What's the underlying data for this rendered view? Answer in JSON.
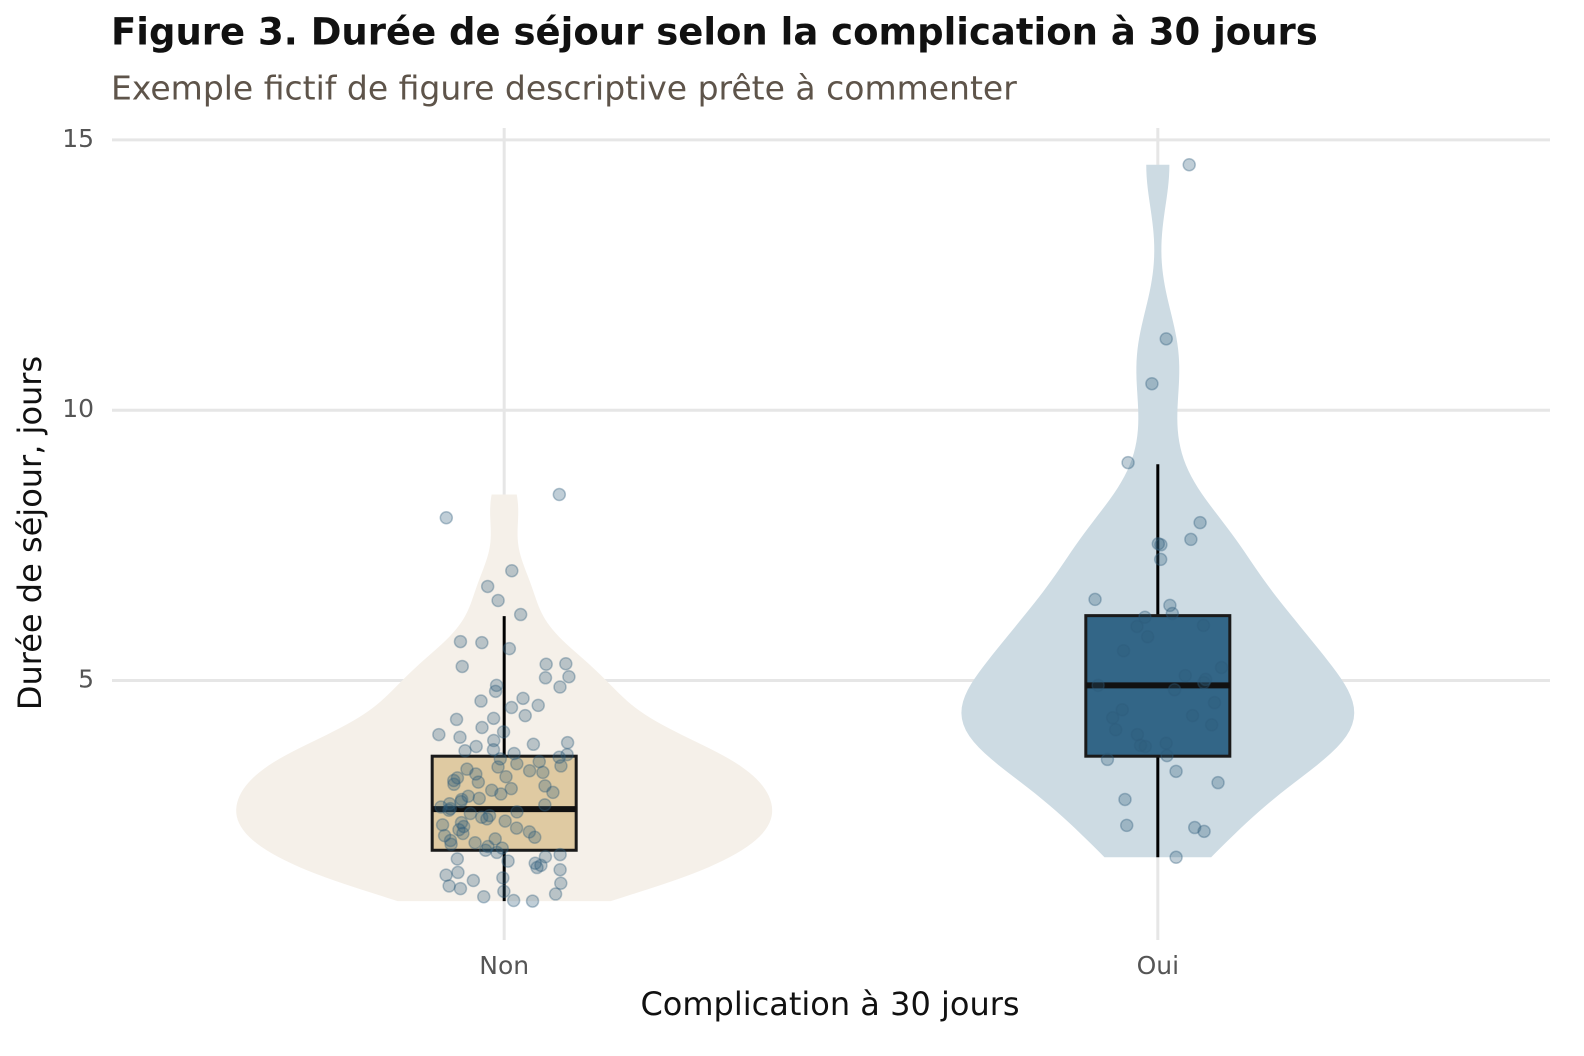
{
  "chart_data": {
    "type": "violin",
    "title": "Figure 3. Durée de séjour selon la complication à 30 jours",
    "subtitle": "Exemple fictif de figure descriptive prête à commenter",
    "x_label": "Complication à 30 jours",
    "y_label": "Durée de séjour, jours",
    "categories": [
      "Non",
      "Oui"
    ],
    "groups": [
      {
        "violin_color": "#f5f0e9",
        "box_color": "#dfcaa2",
        "q1": 1.86,
        "median": 2.62,
        "q3": 3.6,
        "whisker_low": 0.92,
        "whisker_high": 6.19,
        "points": [
          8.44,
          8.01,
          7.03,
          6.74,
          6.48,
          6.22,
          5.72,
          5.7,
          5.59,
          5.31,
          5.3,
          5.26,
          5.07,
          5.05,
          4.91,
          4.88,
          4.8,
          4.67,
          4.62,
          4.54,
          4.5,
          4.35,
          4.3,
          4.28,
          4.13,
          4.05,
          4.0,
          3.95,
          3.89,
          3.85,
          3.82,
          3.78,
          3.72,
          3.7,
          3.65,
          3.63,
          3.58,
          3.55,
          3.5,
          3.46,
          3.42,
          3.4,
          3.36,
          3.33,
          3.3,
          3.27,
          3.22,
          3.2,
          3.15,
          3.12,
          3.08,
          3.05,
          3.0,
          2.97,
          2.93,
          2.9,
          2.86,
          2.82,
          2.8,
          2.76,
          2.72,
          2.7,
          2.66,
          2.63,
          2.6,
          2.57,
          2.54,
          2.5,
          2.47,
          2.44,
          2.4,
          2.37,
          2.33,
          2.3,
          2.27,
          2.24,
          2.2,
          2.17,
          2.13,
          2.1,
          2.07,
          2.04,
          2.0,
          1.97,
          1.93,
          1.9,
          1.86,
          1.82,
          1.78,
          1.74,
          1.7,
          1.66,
          1.62,
          1.58,
          1.54,
          1.5,
          1.45,
          1.4,
          1.35,
          1.3,
          1.25,
          1.2,
          1.15,
          1.1,
          1.05,
          1.0,
          0.93,
          0.92
        ]
      },
      {
        "violin_color": "#cddbe3",
        "box_color": "#336687",
        "q1": 3.6,
        "median": 4.91,
        "q3": 6.2,
        "whisker_low": 1.73,
        "whisker_high": 9.0,
        "points": [
          14.54,
          11.32,
          10.49,
          9.03,
          7.92,
          7.61,
          7.53,
          7.51,
          7.24,
          6.5,
          6.39,
          6.24,
          6.17,
          6.02,
          6.0,
          5.81,
          5.55,
          5.24,
          5.09,
          5.02,
          4.96,
          4.91,
          4.83,
          4.59,
          4.46,
          4.35,
          4.31,
          4.18,
          4.09,
          4.0,
          3.84,
          3.8,
          3.78,
          3.61,
          3.54,
          3.32,
          3.11,
          2.8,
          2.32,
          2.28,
          2.21,
          1.73
        ]
      }
    ],
    "point_color": "#2f5d7c",
    "ylim": [
      0.2,
      15.22
    ],
    "yticks": [
      5,
      10,
      15
    ],
    "grid": true
  }
}
